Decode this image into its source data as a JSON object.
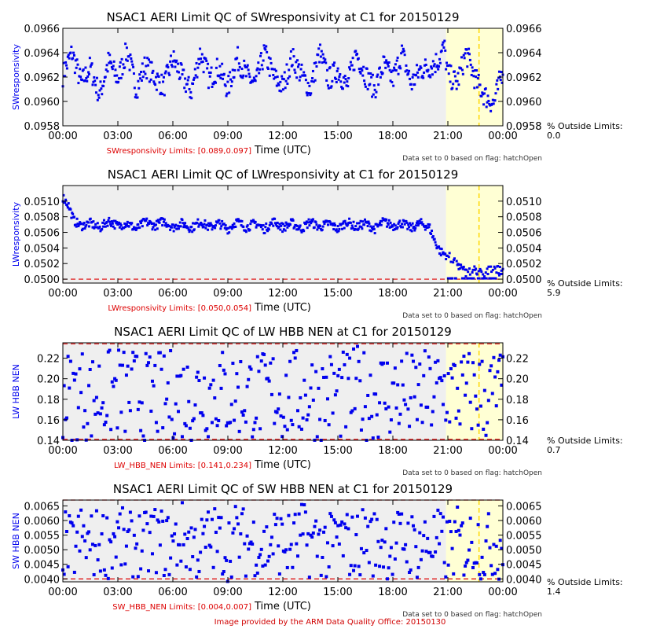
{
  "footer_text": "Image provided by the ARM Data Quality Office: 20150130",
  "colors": {
    "data": "#0000ee",
    "limit_line": "#dd0000",
    "plot_bg": "#efefef",
    "hatch_bg": "#ffffd4",
    "hatch_line": "#ffd700",
    "limits_text": "#dd0000"
  },
  "chart_data": [
    {
      "type": "scatter",
      "title": "NSAC1 AERI Limit QC of SWresponsivity at C1 for 20150129",
      "ylabel": "SWresponsivity",
      "xlabel": "Time (UTC)",
      "x_ticks": [
        "00:00",
        "03:00",
        "06:00",
        "09:00",
        "12:00",
        "15:00",
        "18:00",
        "21:00",
        "00:00"
      ],
      "xlim": [
        0,
        24
      ],
      "ylim": [
        0.0958,
        0.0966
      ],
      "y_ticks": [
        "0.0958",
        "0.0960",
        "0.0962",
        "0.0964",
        "0.0966"
      ],
      "y_tick_values": [
        0.0958,
        0.096,
        0.0962,
        0.0964,
        0.0966
      ],
      "limits_label": "SWresponsivity Limits: [0.089,0.097]",
      "limit_lines": [],
      "outside_label": "% Outside Limits:",
      "outside_value": "0.0",
      "note": "Data set to 0 based on flag: hatchOpen",
      "hatch_region": [
        20.9,
        24
      ],
      "hatch_marker": 22.7,
      "series": [
        {
          "x": [
            0.0,
            0.5,
            1.0,
            1.5,
            2.0,
            2.5,
            3.0,
            3.5,
            4.0,
            4.5,
            5.0,
            5.5,
            6.0,
            6.5,
            7.0,
            7.5,
            8.0,
            8.5,
            9.0,
            9.5,
            10.0,
            10.5,
            11.0,
            11.5,
            12.0,
            12.5,
            13.0,
            13.5,
            14.0,
            14.5,
            15.0,
            15.5,
            16.0,
            16.5,
            17.0,
            17.5,
            18.0,
            18.5,
            19.0,
            19.5,
            20.0,
            20.5,
            20.8,
            21.0,
            21.5,
            22.0,
            22.5,
            23.0,
            23.5,
            24.0
          ],
          "y": [
            0.09622,
            0.0964,
            0.09615,
            0.09628,
            0.09605,
            0.09633,
            0.09618,
            0.09642,
            0.0961,
            0.0963,
            0.0962,
            0.09612,
            0.09635,
            0.0962,
            0.09608,
            0.0964,
            0.09618,
            0.09628,
            0.0961,
            0.09636,
            0.09622,
            0.09614,
            0.0964,
            0.0962,
            0.09612,
            0.09636,
            0.09622,
            0.0961,
            0.0964,
            0.09618,
            0.09626,
            0.09612,
            0.0964,
            0.09622,
            0.0961,
            0.0963,
            0.09618,
            0.0964,
            0.09614,
            0.09626,
            0.09628,
            0.09634,
            0.09645,
            0.09622,
            0.09615,
            0.0964,
            0.09618,
            0.09605,
            0.09598,
            0.09626
          ],
          "spread": 0.00012
        }
      ]
    },
    {
      "type": "scatter",
      "title": "NSAC1 AERI Limit QC of LWresponsivity at C1 for 20150129",
      "ylabel": "LWresponsivity",
      "xlabel": "Time (UTC)",
      "x_ticks": [
        "00:00",
        "03:00",
        "06:00",
        "09:00",
        "12:00",
        "15:00",
        "18:00",
        "21:00",
        "00:00"
      ],
      "xlim": [
        0,
        24
      ],
      "ylim": [
        0.04995,
        0.0512
      ],
      "y_ticks": [
        "0.0500",
        "0.0502",
        "0.0504",
        "0.0506",
        "0.0508",
        "0.0510"
      ],
      "y_tick_values": [
        0.05,
        0.0502,
        0.0504,
        0.0506,
        0.0508,
        0.051
      ],
      "limits_label": "LWresponsivity Limits: [0.050,0.054]",
      "limit_lines": [
        0.05
      ],
      "outside_label": "% Outside Limits:",
      "outside_value": "5.9",
      "note": "Data set to 0 based on flag: hatchOpen",
      "hatch_region": [
        20.9,
        24
      ],
      "hatch_marker": 22.7,
      "series": [
        {
          "x": [
            0.0,
            0.3,
            0.6,
            1.0,
            1.5,
            2.0,
            2.5,
            3.0,
            3.5,
            4.0,
            4.5,
            5.0,
            5.5,
            6.0,
            6.5,
            7.0,
            7.5,
            8.0,
            8.5,
            9.0,
            9.5,
            10.0,
            10.5,
            11.0,
            11.5,
            12.0,
            12.5,
            13.0,
            13.5,
            14.0,
            14.5,
            15.0,
            15.5,
            16.0,
            16.5,
            17.0,
            17.5,
            18.0,
            18.5,
            19.0,
            19.5,
            20.0,
            20.3,
            20.6,
            21.0,
            21.5,
            22.0,
            22.5,
            23.0,
            23.5,
            23.8
          ],
          "y": [
            0.05105,
            0.05095,
            0.05075,
            0.05068,
            0.05072,
            0.05065,
            0.05075,
            0.05068,
            0.05072,
            0.05064,
            0.05074,
            0.05068,
            0.05075,
            0.05066,
            0.05072,
            0.05065,
            0.05074,
            0.05066,
            0.05072,
            0.05064,
            0.05074,
            0.05066,
            0.05072,
            0.05064,
            0.05074,
            0.05066,
            0.05072,
            0.05064,
            0.05074,
            0.05066,
            0.05072,
            0.05064,
            0.05074,
            0.05066,
            0.05072,
            0.05064,
            0.05074,
            0.05068,
            0.05072,
            0.05065,
            0.05072,
            0.05066,
            0.05048,
            0.05035,
            0.0503,
            0.0502,
            0.05008,
            0.05012,
            0.05005,
            0.05018,
            0.0501
          ],
          "spread": 7e-05
        }
      ]
    },
    {
      "type": "scatter",
      "title": "NSAC1 AERI Limit QC of LW HBB NEN at C1 for 20150129",
      "ylabel": "LW HBB NEN",
      "xlabel": "Time (UTC)",
      "x_ticks": [
        "00:00",
        "03:00",
        "06:00",
        "09:00",
        "12:00",
        "15:00",
        "18:00",
        "21:00",
        "00:00"
      ],
      "xlim": [
        0,
        24
      ],
      "ylim": [
        0.14,
        0.235
      ],
      "y_ticks": [
        "0.14",
        "0.16",
        "0.18",
        "0.20",
        "0.22"
      ],
      "y_tick_values": [
        0.14,
        0.16,
        0.18,
        0.2,
        0.22
      ],
      "limits_label": "LW_HBB_NEN Limits: [0.141,0.234]",
      "limit_lines": [
        0.141,
        0.234
      ],
      "outside_label": "% Outside Limits:",
      "outside_value": "0.7",
      "note": "Data set to 0 based on flag: hatchOpen",
      "hatch_region": [
        20.9,
        24
      ],
      "hatch_marker": 22.7,
      "series": [
        {
          "x": [
            0.0,
            0.5,
            1.0,
            1.5,
            2.0,
            2.5,
            3.0,
            3.5,
            4.0,
            4.5,
            5.0,
            5.5,
            6.0,
            6.5,
            7.0,
            7.5,
            8.0,
            8.5,
            9.0,
            9.5,
            10.0,
            10.5,
            11.0,
            11.5,
            12.0,
            12.5,
            13.0,
            13.5,
            14.0,
            14.5,
            15.0,
            15.5,
            16.0,
            16.5,
            17.0,
            17.5,
            18.0,
            18.5,
            19.0,
            19.5,
            20.0,
            20.5,
            21.0,
            21.5,
            22.0,
            22.5,
            23.0,
            23.5,
            24.0
          ],
          "y": [
            0.185,
            0.182,
            0.188,
            0.18,
            0.186,
            0.184,
            0.19,
            0.183,
            0.187,
            0.181,
            0.185,
            0.18,
            0.186,
            0.184,
            0.182,
            0.188,
            0.185,
            0.19,
            0.183,
            0.187,
            0.184,
            0.186,
            0.182,
            0.188,
            0.181,
            0.185,
            0.183,
            0.187,
            0.18,
            0.186,
            0.184,
            0.182,
            0.188,
            0.185,
            0.183,
            0.187,
            0.184,
            0.186,
            0.181,
            0.185,
            0.183,
            0.187,
            0.19,
            0.186,
            0.184,
            0.188,
            0.182,
            0.185,
            0.186
          ],
          "spread": 0.045
        }
      ]
    },
    {
      "type": "scatter",
      "title": "NSAC1 AERI Limit QC of SW HBB NEN at C1 for 20150129",
      "ylabel": "SW HBB NEN",
      "xlabel": "Time (UTC)",
      "x_ticks": [
        "00:00",
        "03:00",
        "06:00",
        "09:00",
        "12:00",
        "15:00",
        "18:00",
        "21:00",
        "00:00"
      ],
      "xlim": [
        0,
        24
      ],
      "ylim": [
        0.0039,
        0.0067
      ],
      "y_ticks": [
        "0.0040",
        "0.0045",
        "0.0050",
        "0.0055",
        "0.0060",
        "0.0065"
      ],
      "y_tick_values": [
        0.004,
        0.0045,
        0.005,
        0.0055,
        0.006,
        0.0065
      ],
      "limits_label": "SW_HBB_NEN Limits: [0.004,0.007]",
      "limit_lines": [
        0.004,
        0.0067
      ],
      "outside_label": "% Outside Limits:",
      "outside_value": "1.4",
      "note": "Data set to 0 based on flag: hatchOpen",
      "hatch_region": [
        20.9,
        24
      ],
      "hatch_marker": 22.7,
      "series": [
        {
          "x": [
            0.0,
            0.5,
            1.0,
            1.5,
            2.0,
            2.5,
            3.0,
            3.5,
            4.0,
            4.5,
            5.0,
            5.5,
            6.0,
            6.5,
            7.0,
            7.5,
            8.0,
            8.5,
            9.0,
            9.5,
            10.0,
            10.5,
            11.0,
            11.5,
            12.0,
            12.5,
            13.0,
            13.5,
            14.0,
            14.5,
            15.0,
            15.5,
            16.0,
            16.5,
            17.0,
            17.5,
            18.0,
            18.5,
            19.0,
            19.5,
            20.0,
            20.5,
            21.0,
            21.5,
            22.0,
            22.5,
            23.0,
            23.5,
            24.0
          ],
          "y": [
            0.0052,
            0.005,
            0.0054,
            0.0051,
            0.0053,
            0.0052,
            0.0055,
            0.005,
            0.0053,
            0.0051,
            0.0054,
            0.0052,
            0.0051,
            0.0055,
            0.0052,
            0.005,
            0.0054,
            0.0053,
            0.0051,
            0.0055,
            0.0052,
            0.0053,
            0.005,
            0.0054,
            0.0052,
            0.0051,
            0.0055,
            0.0052,
            0.0053,
            0.005,
            0.0054,
            0.0052,
            0.0051,
            0.0055,
            0.0052,
            0.0053,
            0.005,
            0.0054,
            0.0052,
            0.0051,
            0.0053,
            0.0052,
            0.005,
            0.0053,
            0.0051,
            0.0054,
            0.005,
            0.0052,
            0.0051
          ],
          "spread": 0.0012
        }
      ]
    }
  ]
}
